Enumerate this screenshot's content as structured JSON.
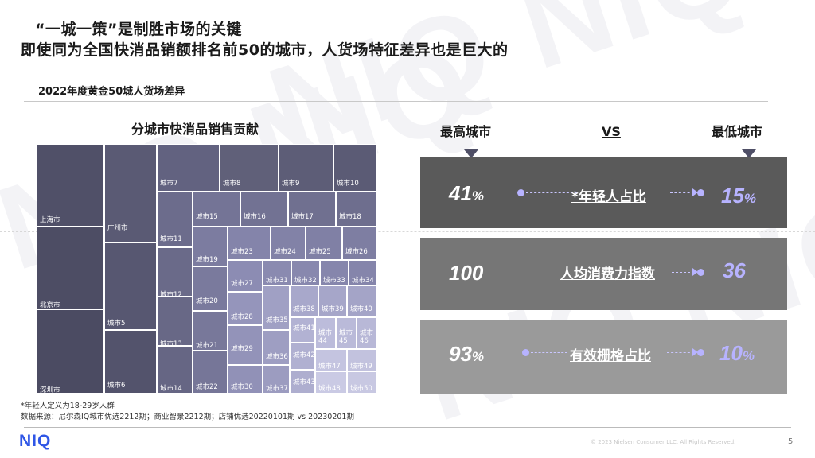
{
  "header": {
    "title_line1": "“一城一策”是制胜市场的关键",
    "title_line2": "即使同为全国快消品销额排名前50的城市，人货场特征差异也是巨大的"
  },
  "watermark": "NIQ NIQ",
  "subtitle": "2022年度黄金50城人货场差异",
  "treemap": {
    "title": "分城市快消品销售贡献",
    "cells": [
      "上海市",
      "北京市",
      "深圳市",
      "广州市",
      "城市5",
      "城市6",
      "城市7",
      "城市8",
      "城市9",
      "城市10",
      "城市11",
      "城市12",
      "城市13",
      "城市14",
      "城市15",
      "城市16",
      "城市17",
      "城市18",
      "城市19",
      "城市20",
      "城市21",
      "城市22",
      "城市23",
      "城市24",
      "城市25",
      "城市26",
      "城市27",
      "城市31",
      "城市32",
      "城市33",
      "城市34",
      "城市28",
      "城市29",
      "城市30",
      "城市35",
      "城市36",
      "城市37",
      "城市38",
      "城市39",
      "城市40",
      "城市41",
      "城市42",
      "城市43",
      "城市44",
      "城市45",
      "城市46",
      "城市47",
      "城市49",
      "城市48",
      "城市50"
    ]
  },
  "comparison": {
    "highest_label": "最高城市",
    "vs_label": "VS",
    "lowest_label": "最低城市",
    "rows": [
      {
        "left_value": "41",
        "left_unit": "%",
        "label": "*年轻人占比",
        "right_value": "15",
        "right_unit": "%"
      },
      {
        "left_value": "100",
        "left_unit": "",
        "label": "人均消费力指数",
        "right_value": "36",
        "right_unit": ""
      },
      {
        "left_value": "93",
        "left_unit": "%",
        "label": "有效栅格占比",
        "right_value": "10",
        "right_unit": "%"
      }
    ],
    "colors": {
      "band1": "#5a5a5a",
      "band2": "#767676",
      "band3": "#9a9a9a",
      "accent": "#b7b3ff"
    }
  },
  "notes": {
    "footnote": "*年轻人定义为18-29岁人群",
    "source": "数据来源：尼尔森IQ城市优选2212期；商业智景2212期；店铺优选20220101期 vs 20230201期"
  },
  "footer": {
    "logo": "NIQ",
    "copyright": "© 2023 Nielsen Consumer LLC. All Rights Reserved.",
    "page_number": "5"
  }
}
